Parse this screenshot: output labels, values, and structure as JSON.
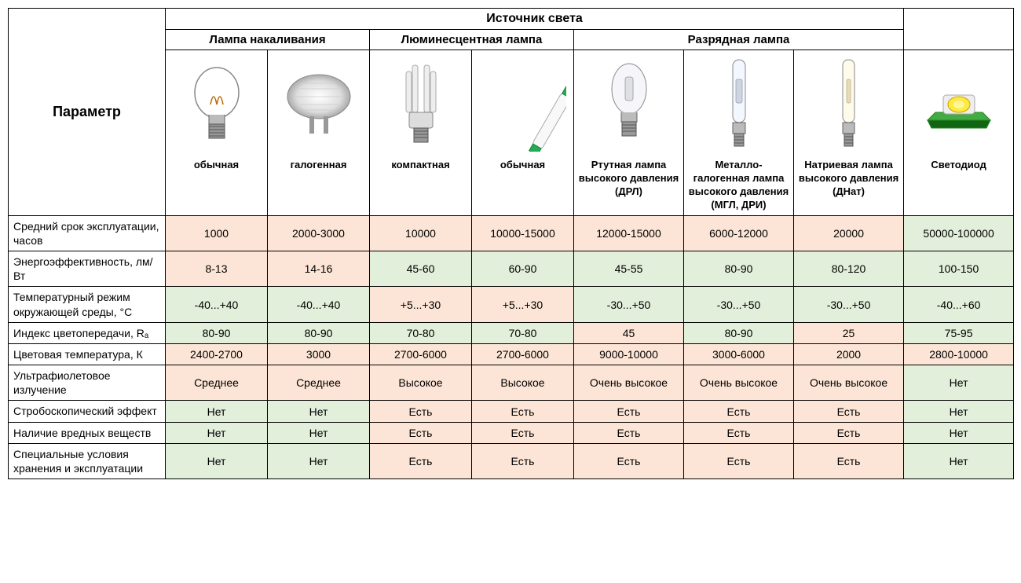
{
  "colors": {
    "peach": "#fce5d6",
    "green": "#e2efda",
    "border": "#000000",
    "bg": "#ffffff"
  },
  "headers": {
    "parameter": "Параметр",
    "source": "Источник света",
    "groups": [
      "Лампа накаливания",
      "Люминесцентная лампа",
      "Разрядная лампа"
    ],
    "cols": [
      "обычная",
      "галогенная",
      "компактная",
      "обычная",
      "Ртутная лампа высокого давления (ДРЛ)",
      "Металло-галогенная лампа высокого давления (МГЛ, ДРИ)",
      "Натриевая лампа высокого давления (ДНат)",
      "Светодиод"
    ]
  },
  "icons": [
    "incandescent",
    "halogen",
    "cfl",
    "tube",
    "mercury",
    "metalhalide",
    "sodium",
    "led"
  ],
  "rows": [
    {
      "label": "Средний срок эксплуатации, часов",
      "colors": [
        "peach",
        "peach",
        "peach",
        "peach",
        "peach",
        "peach",
        "peach",
        "green"
      ],
      "values": [
        "1000",
        "2000-3000",
        "10000",
        "10000-15000",
        "12000-15000",
        "6000-12000",
        "20000",
        "50000-100000"
      ]
    },
    {
      "label": "Энергоэффективность, лм/Вт",
      "colors": [
        "peach",
        "peach",
        "green",
        "green",
        "green",
        "green",
        "green",
        "green"
      ],
      "values": [
        "8-13",
        "14-16",
        "45-60",
        "60-90",
        "45-55",
        "80-90",
        "80-120",
        "100-150"
      ]
    },
    {
      "label": "Температурный режим окружающей среды, °С",
      "colors": [
        "green",
        "green",
        "peach",
        "peach",
        "green",
        "green",
        "green",
        "green"
      ],
      "values": [
        "-40...+40",
        "-40...+40",
        "+5...+30",
        "+5...+30",
        "-30...+50",
        "-30...+50",
        "-30...+50",
        "-40...+60"
      ]
    },
    {
      "label": "Индекс цветопередачи, Rₐ",
      "colors": [
        "green",
        "green",
        "green",
        "green",
        "peach",
        "green",
        "peach",
        "green"
      ],
      "values": [
        "80-90",
        "80-90",
        "70-80",
        "70-80",
        "45",
        "80-90",
        "25",
        "75-95"
      ]
    },
    {
      "label": "Цветовая температура, К",
      "colors": [
        "peach",
        "peach",
        "peach",
        "peach",
        "peach",
        "peach",
        "peach",
        "peach"
      ],
      "values": [
        "2400-2700",
        "3000",
        "2700-6000",
        "2700-6000",
        "9000-10000",
        "3000-6000",
        "2000",
        "2800-10000"
      ]
    },
    {
      "label": "Ультрафиолетовое излучение",
      "colors": [
        "peach",
        "peach",
        "peach",
        "peach",
        "peach",
        "peach",
        "peach",
        "green"
      ],
      "values": [
        "Среднее",
        "Среднее",
        "Высокое",
        "Высокое",
        "Очень высокое",
        "Очень высокое",
        "Очень высокое",
        "Нет"
      ]
    },
    {
      "label": "Стробоскопический эффект",
      "colors": [
        "green",
        "green",
        "peach",
        "peach",
        "peach",
        "peach",
        "peach",
        "green"
      ],
      "values": [
        "Нет",
        "Нет",
        "Есть",
        "Есть",
        "Есть",
        "Есть",
        "Есть",
        "Нет"
      ]
    },
    {
      "label": "Наличие вредных веществ",
      "colors": [
        "green",
        "green",
        "peach",
        "peach",
        "peach",
        "peach",
        "peach",
        "green"
      ],
      "values": [
        "Нет",
        "Нет",
        "Есть",
        "Есть",
        "Есть",
        "Есть",
        "Есть",
        "Нет"
      ]
    },
    {
      "label": "Специальные условия хранения и эксплуатации",
      "colors": [
        "green",
        "green",
        "peach",
        "peach",
        "peach",
        "peach",
        "peach",
        "green"
      ],
      "values": [
        "Нет",
        "Нет",
        "Есть",
        "Есть",
        "Есть",
        "Есть",
        "Есть",
        "Нет"
      ]
    }
  ]
}
